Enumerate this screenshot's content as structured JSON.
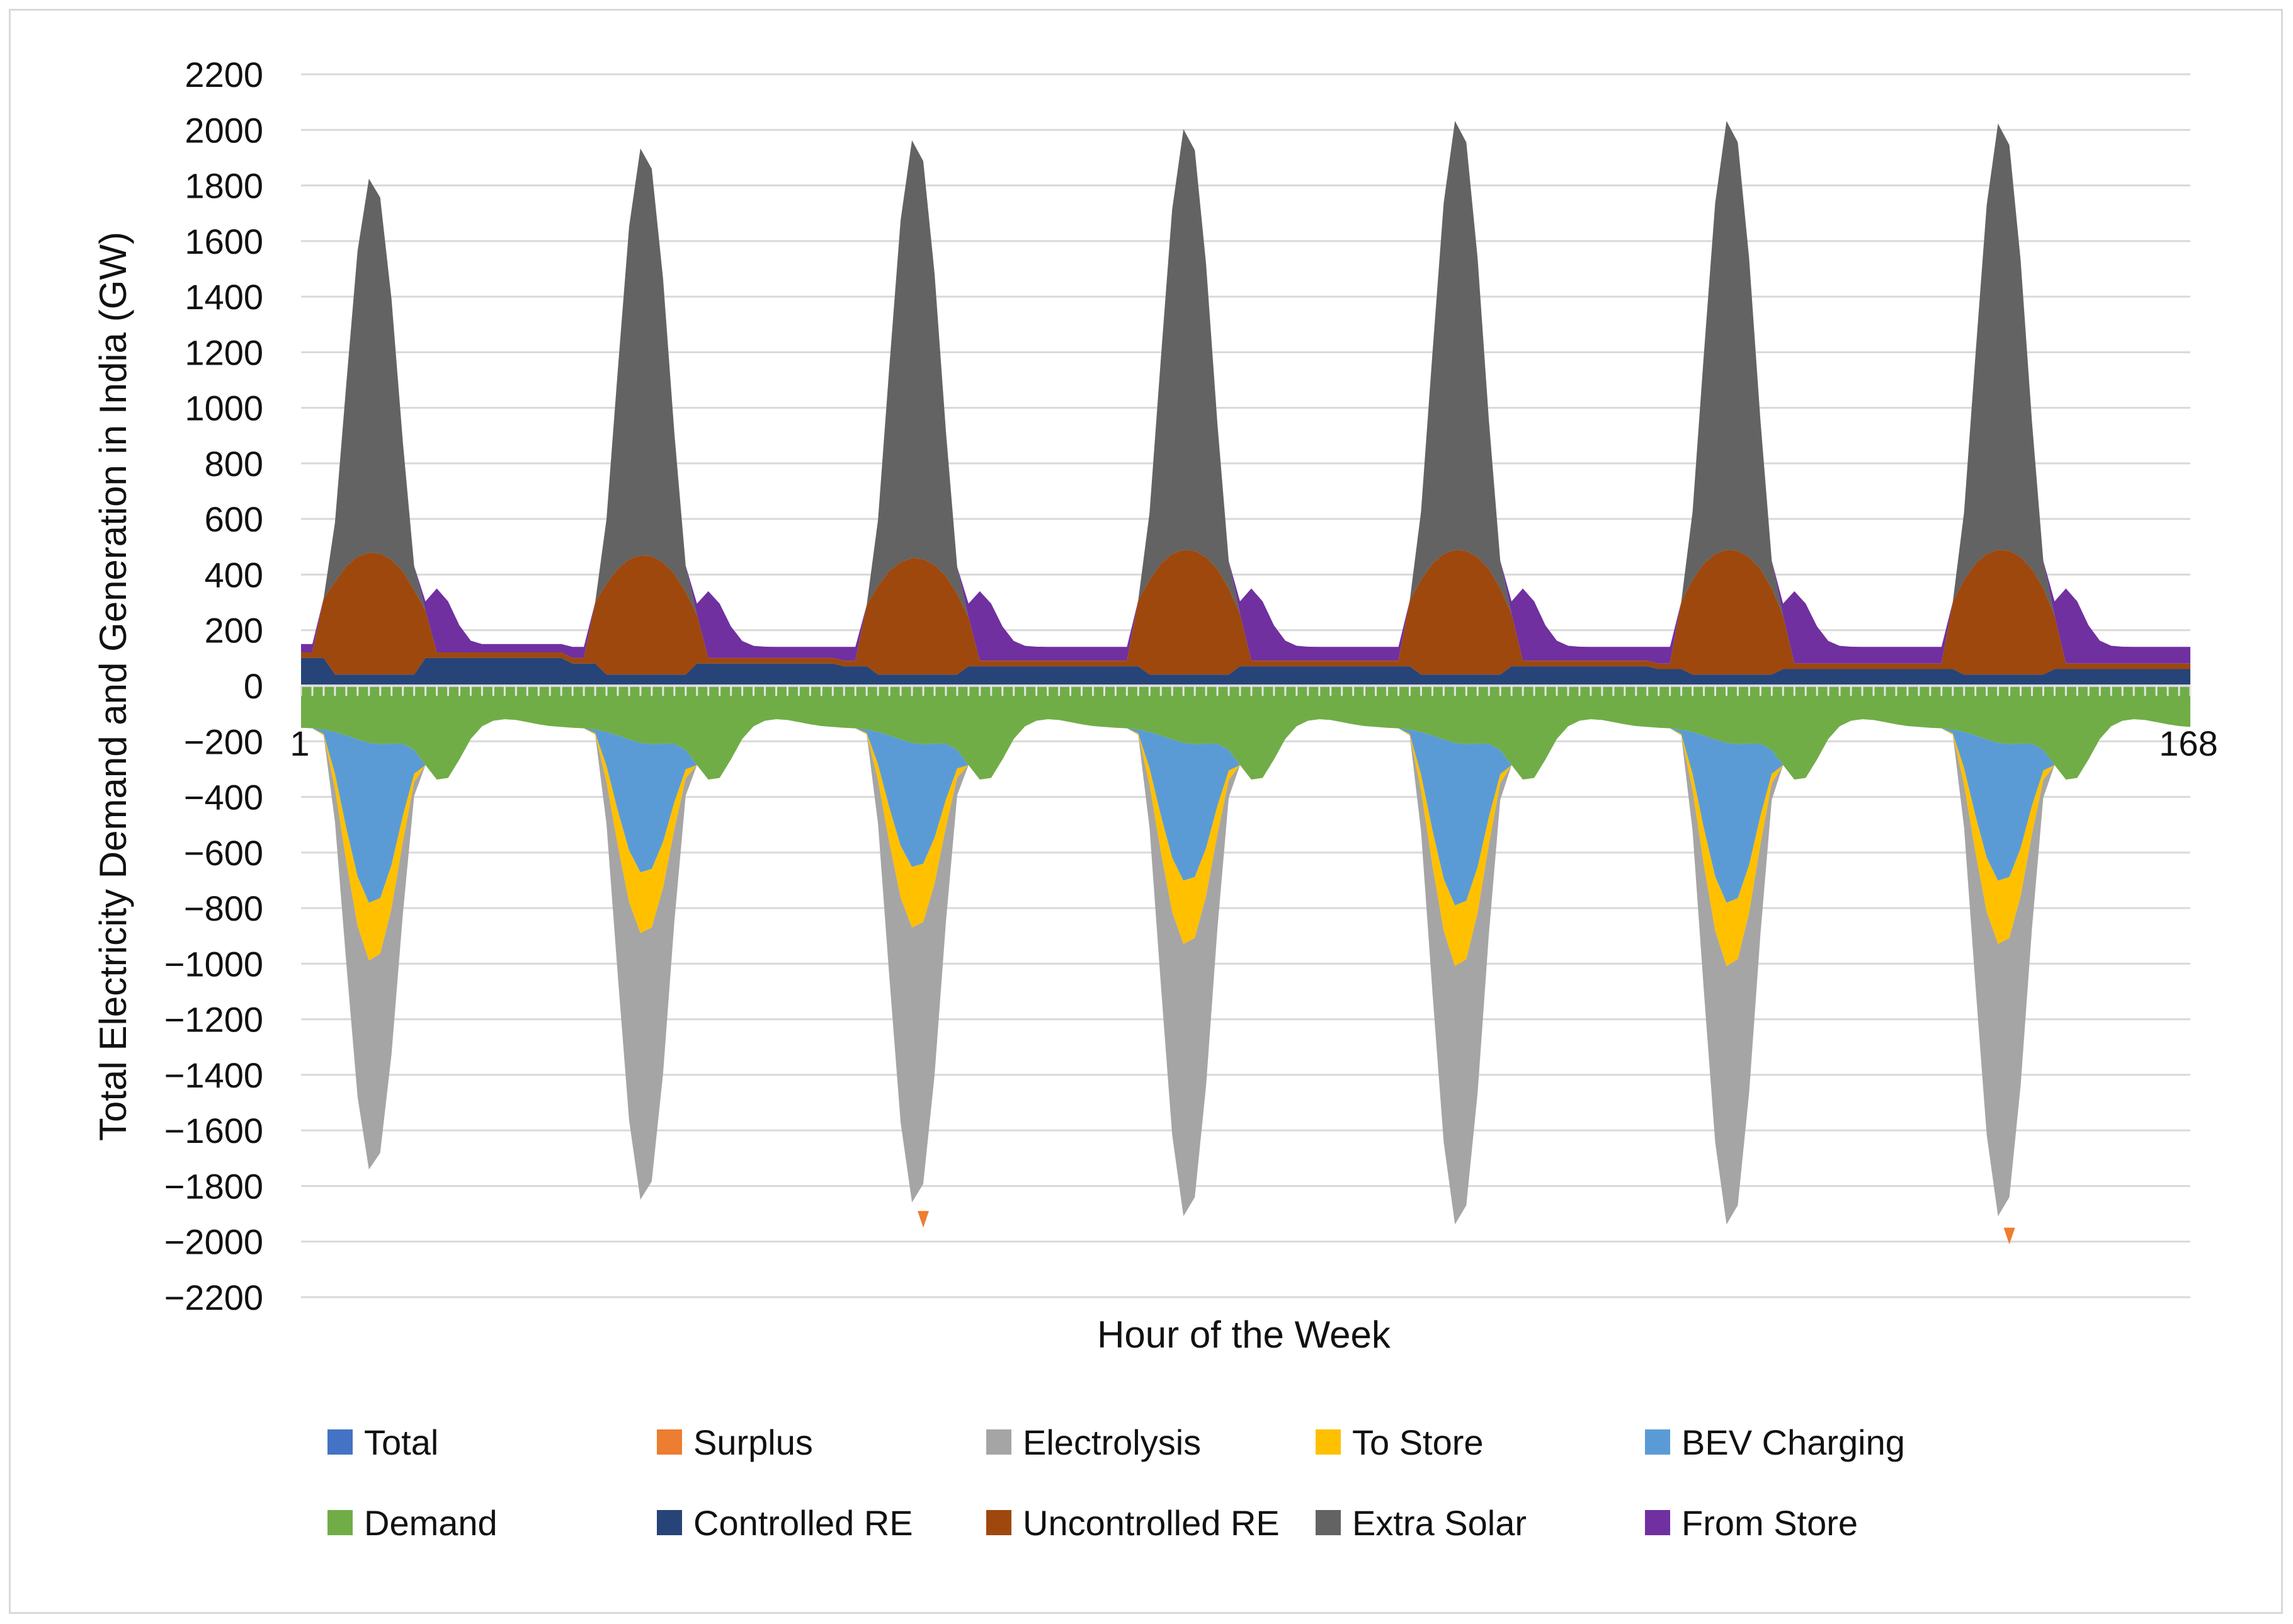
{
  "chart_data": {
    "type": "area",
    "title": "",
    "xlabel": "Hour of the Week",
    "ylabel": "Total Electricity Demand and Generation in India (GW)",
    "x_range": [
      1,
      168
    ],
    "x_tick_labels": [
      "1",
      "168"
    ],
    "ylim": [
      -2200,
      2200
    ],
    "y_ticks": [
      2200,
      2000,
      1800,
      1600,
      1400,
      1200,
      1000,
      800,
      600,
      400,
      200,
      0,
      -200,
      -400,
      -600,
      -800,
      -1000,
      -1200,
      -1400,
      -1600,
      -1800,
      -2000,
      -2200
    ],
    "y_tick_labels": [
      "2200",
      "2000",
      "1800",
      "1600",
      "1400",
      "1200",
      "1000",
      "800",
      "600",
      "400",
      "200",
      "0",
      "−200",
      "−400",
      "−600",
      "−800",
      "−1000",
      "−1200",
      "−1400",
      "−1600",
      "−1800",
      "−2000",
      "−2200"
    ],
    "grid": true,
    "legend_position": "bottom",
    "day_peaks": {
      "extra_solar_top": [
        1820,
        1930,
        1960,
        2000,
        2030,
        2030,
        2020
      ],
      "electrolysis_bottom": [
        -1820,
        -1930,
        -1940,
        -1990,
        -2020,
        -2020,
        -1990
      ],
      "to_store_bottom": [
        -1060,
        -960,
        -940,
        -1000,
        -1080,
        -1080,
        -1000
      ],
      "bev_bottom": [
        -850,
        -740,
        -720,
        -770,
        -860,
        -850,
        -770
      ],
      "uncontrolled_re_top": [
        460,
        450,
        440,
        470,
        470,
        470,
        470
      ],
      "controlled_re_level": [
        100,
        80,
        70,
        70,
        70,
        60,
        60
      ],
      "from_store_evening": [
        350,
        340,
        340,
        350,
        350,
        340,
        350
      ],
      "demand_min": [
        -340,
        -340,
        -340,
        -340,
        -340,
        -340,
        -340
      ],
      "surplus_spike": [
        0,
        0,
        -1950,
        0,
        0,
        0,
        -2010
      ]
    },
    "series": [
      {
        "name": "Total",
        "color": "#4472c4"
      },
      {
        "name": "Surplus",
        "color": "#ed7d31"
      },
      {
        "name": "Electrolysis",
        "color": "#a5a5a5"
      },
      {
        "name": "To Store",
        "color": "#ffc000"
      },
      {
        "name": "BEV Charging",
        "color": "#5b9bd5"
      },
      {
        "name": "Demand",
        "color": "#70ad47"
      },
      {
        "name": "Controlled RE",
        "color": "#264478"
      },
      {
        "name": "Uncontrolled RE",
        "color": "#9e480e"
      },
      {
        "name": "Extra Solar",
        "color": "#636363"
      },
      {
        "name": "From Store",
        "color": "#7030a0"
      }
    ]
  }
}
